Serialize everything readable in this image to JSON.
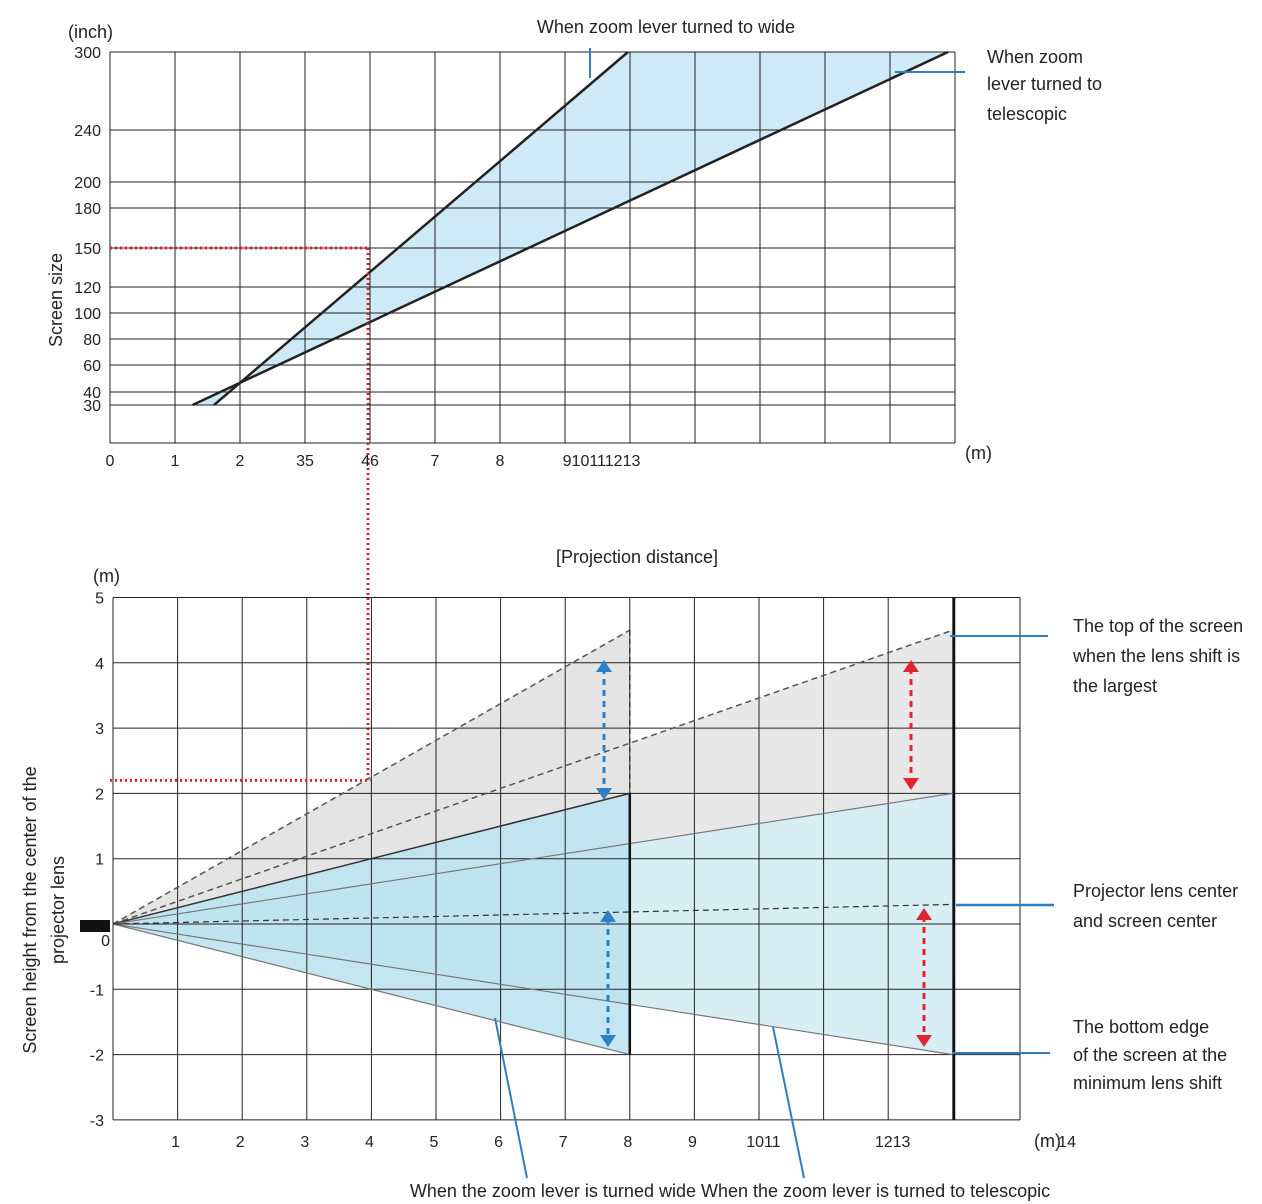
{
  "colors": {
    "wide_band": "#cdeaf6",
    "gray_region": "#e4e4e4",
    "blue_region": "#bde3ef",
    "grid": "#222222",
    "guide_red": "#d8262e",
    "leader_blue": "#2f7fbf",
    "arrow_blue": "#2f7fc6",
    "arrow_red": "#e0262e"
  },
  "chart_data": [
    {
      "type": "area",
      "title": "When zoom lever turned to wide",
      "ylabel": "Screen size",
      "yunit": "(inch)",
      "xunit": "(m)",
      "xlabel": "[Projection distance]",
      "xlim": [
        0,
        13
      ],
      "x_ticks": [
        "0",
        "1",
        "2",
        "35",
        "46",
        "7",
        "8",
        "910111213"
      ],
      "y_ticks": [
        "300",
        "240",
        "200",
        "180",
        "150",
        "120",
        "100",
        "80",
        "60",
        "40",
        "30"
      ],
      "y_tick_values": [
        300,
        240,
        200,
        180,
        150,
        120,
        100,
        80,
        60,
        40,
        30
      ],
      "grid": true,
      "series": [
        {
          "name": "When zoom lever turned to wide",
          "x": [
            0.8,
            8.0
          ],
          "y": [
            30,
            300
          ]
        },
        {
          "name": "When zoom lever turned to telescopic",
          "x": [
            1.3,
            13.0
          ],
          "y": [
            30,
            300
          ]
        }
      ],
      "guide": {
        "x": 4.0,
        "y": 150
      },
      "annotations": {
        "wide": "When zoom lever turned to wide",
        "tele": [
          "When zoom",
          "lever turned to",
          "telescopic"
        ]
      }
    },
    {
      "type": "area",
      "yunit": "(m)",
      "xunit": "(m)",
      "ylabel_lines": [
        "Screen height from the center of the",
        "projector lens"
      ],
      "ylim": [
        -3,
        5
      ],
      "xlim": [
        0,
        13
      ],
      "x_ticks": [
        "1",
        "2",
        "3",
        "4",
        "5",
        "6",
        "7",
        "8",
        "9",
        "1011",
        "1213",
        "14"
      ],
      "y_ticks": [
        "5",
        "4",
        "3",
        "2",
        "1",
        "0",
        "-1",
        "-2",
        "-3"
      ],
      "grid": true,
      "wide_end": 8.0,
      "tele_end": 13.0,
      "top_max": 4.5,
      "top_min": 2.0,
      "center_line": 0.3,
      "bottom": -2.0,
      "guide": {
        "x": 4.0,
        "y": 2.2
      },
      "annotations": {
        "top": [
          "The top of the screen",
          "when the lens shift is",
          "the largest"
        ],
        "center": [
          "Projector lens center",
          "and screen center"
        ],
        "bottom": [
          "The bottom edge",
          "of the screen at the",
          "minimum lens shift"
        ],
        "footer": "When the zoom lever is turned wide When the zoom lever is turned to telescopic"
      }
    }
  ]
}
